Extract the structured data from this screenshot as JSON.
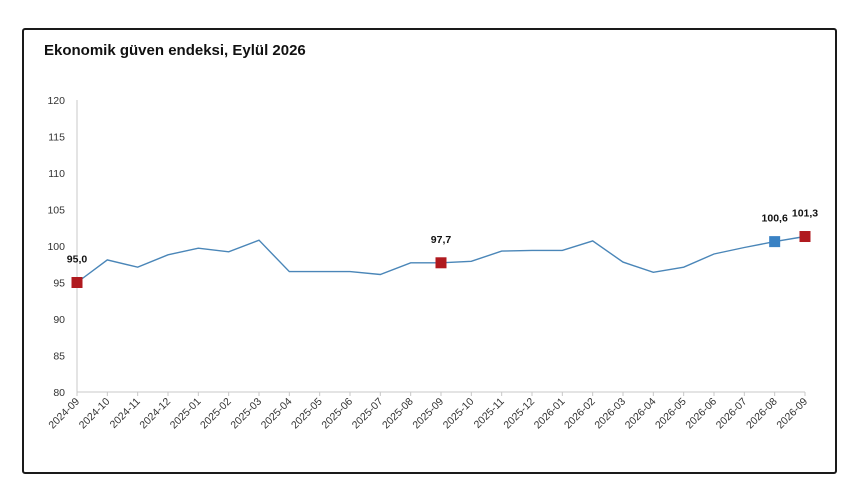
{
  "chart_data": {
    "type": "line",
    "title": "Ekonomik güven endeksi, Eylül 2026",
    "xlabel": "",
    "ylabel": "",
    "ylim": [
      80,
      120
    ],
    "yticks": [
      "80",
      "85",
      "90",
      "95",
      "100",
      "105",
      "110",
      "115",
      "120"
    ],
    "grid": false,
    "categories": [
      "2024-09",
      "2024-10",
      "2024-11",
      "2024-12",
      "2025-01",
      "2025-02",
      "2025-03",
      "2025-04",
      "2025-05",
      "2025-06",
      "2025-07",
      "2025-08",
      "2025-09",
      "2025-10",
      "2025-11",
      "2025-12",
      "2026-01",
      "2026-02",
      "2026-03",
      "2026-04",
      "2026-05",
      "2026-06",
      "2026-07",
      "2026-08",
      "2026-09"
    ],
    "series": [
      {
        "values": [
          95.0,
          98.1,
          97.1,
          98.8,
          99.7,
          99.2,
          100.8,
          96.5,
          96.5,
          96.5,
          96.1,
          97.7,
          97.7,
          97.9,
          99.3,
          99.4,
          99.4,
          100.7,
          97.8,
          96.4,
          97.1,
          98.9,
          99.8,
          100.6,
          101.3
        ],
        "color": "#4a86b8"
      }
    ],
    "markers": [
      {
        "index": 0,
        "label": "95,0",
        "color": "#b01a1f"
      },
      {
        "index": 12,
        "label": "97,7",
        "color": "#b01a1f"
      },
      {
        "index": 23,
        "label": "100,6",
        "color": "#3a82c4"
      },
      {
        "index": 24,
        "label": "101,3",
        "color": "#b01a1f"
      }
    ]
  }
}
